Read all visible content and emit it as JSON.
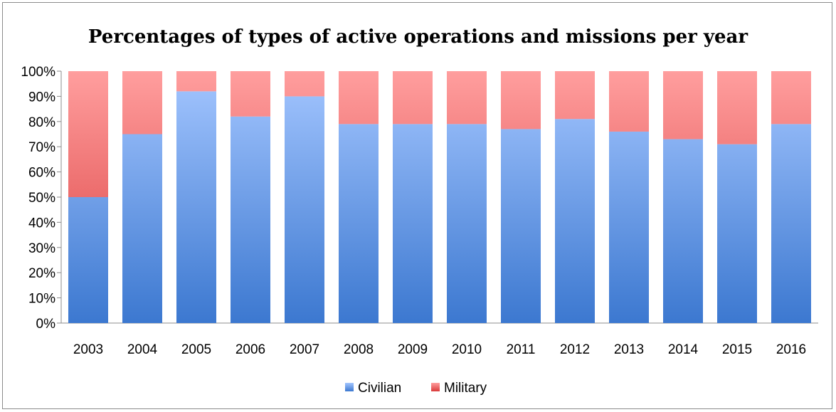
{
  "chart_data": {
    "type": "bar",
    "stacked": true,
    "percent": true,
    "title": "Percentages of types of active operations and missions per year",
    "categories": [
      "2003",
      "2004",
      "2005",
      "2006",
      "2007",
      "2008",
      "2009",
      "2010",
      "2011",
      "2012",
      "2013",
      "2014",
      "2015",
      "2016"
    ],
    "series": [
      {
        "name": "Civilian",
        "values": [
          50,
          75,
          92,
          82,
          90,
          79,
          79,
          79,
          77,
          81,
          76,
          73,
          71,
          79
        ],
        "color": "#5b8fdc"
      },
      {
        "name": "Military",
        "values": [
          50,
          25,
          8,
          18,
          10,
          21,
          21,
          21,
          23,
          19,
          24,
          27,
          29,
          21
        ],
        "color": "#e05a5a"
      }
    ],
    "ylim": [
      0,
      100
    ],
    "yticks": [
      "0%",
      "10%",
      "20%",
      "30%",
      "40%",
      "50%",
      "60%",
      "70%",
      "80%",
      "90%",
      "100%"
    ],
    "grid": false,
    "legend": "bottom"
  }
}
